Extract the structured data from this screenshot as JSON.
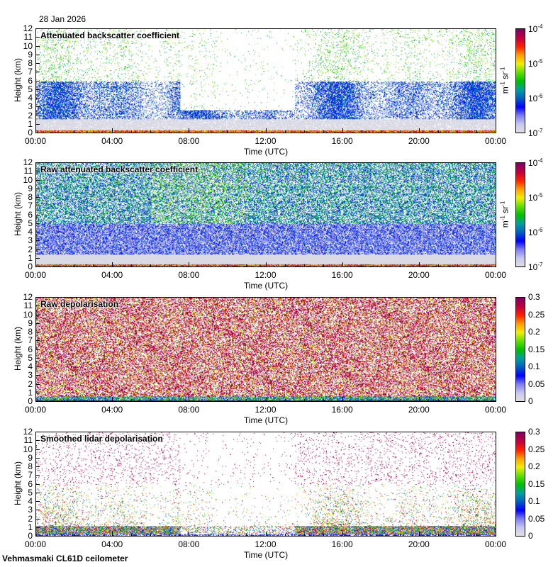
{
  "date": "28 Jan 2026",
  "footer": "Vehmasmaki CL61D ceilometer",
  "colormap": [
    "#e0e0e0",
    "#c8c8f0",
    "#8080f0",
    "#0000ff",
    "#0060c0",
    "#00a0a0",
    "#00c000",
    "#60e000",
    "#f0f000",
    "#ffa000",
    "#ff2000",
    "#c00040",
    "#800060"
  ],
  "chart_data": [
    {
      "type": "heatmap",
      "title": "Attenuated backscatter coefficient",
      "xlabel": "Time (UTC)",
      "ylabel": "Height (km)",
      "xticks": [
        "00:00",
        "04:00",
        "08:00",
        "12:00",
        "16:00",
        "20:00",
        "00:00"
      ],
      "xlim": [
        0,
        24
      ],
      "ylim": [
        0,
        12
      ],
      "yticks": [
        "0",
        "1",
        "2",
        "3",
        "4",
        "5",
        "6",
        "7",
        "8",
        "9",
        "10",
        "11",
        "12"
      ],
      "colorbar": {
        "scale": "log",
        "range": [
          1e-07,
          0.0001
        ],
        "unit_label": "m-1 sr-1",
        "unit": [
          "m",
          "-1",
          " sr",
          "-1"
        ],
        "ticks": [
          {
            "base": "10",
            "exp": "-4"
          },
          {
            "base": "10",
            "exp": "-5"
          },
          {
            "base": "10",
            "exp": "-6"
          },
          {
            "base": "10",
            "exp": "-7"
          }
        ]
      },
      "style": "bs"
    },
    {
      "type": "heatmap",
      "title": "Raw attenuated backscatter coefficient",
      "xlabel": "Time (UTC)",
      "ylabel": "Height (km)",
      "xticks": [
        "00:00",
        "04:00",
        "08:00",
        "12:00",
        "16:00",
        "20:00",
        "00:00"
      ],
      "xlim": [
        0,
        24
      ],
      "ylim": [
        0,
        12
      ],
      "yticks": [
        "0",
        "1",
        "2",
        "3",
        "4",
        "5",
        "6",
        "7",
        "8",
        "9",
        "10",
        "11",
        "12"
      ],
      "colorbar": {
        "scale": "log",
        "range": [
          1e-07,
          0.0001
        ],
        "unit_label": "m-1 sr-1",
        "unit": [
          "m",
          "-1",
          " sr",
          "-1"
        ],
        "ticks": [
          {
            "base": "10",
            "exp": "-4"
          },
          {
            "base": "10",
            "exp": "-5"
          },
          {
            "base": "10",
            "exp": "-6"
          },
          {
            "base": "10",
            "exp": "-7"
          }
        ]
      },
      "style": "raw"
    },
    {
      "type": "heatmap",
      "title": "Raw depolarisation",
      "xlabel": "Time (UTC)",
      "ylabel": "Height (km)",
      "xticks": [
        "00:00",
        "04:00",
        "08:00",
        "12:00",
        "16:00",
        "20:00",
        "00:00"
      ],
      "xlim": [
        0,
        24
      ],
      "ylim": [
        0,
        12
      ],
      "yticks": [
        "0",
        "1",
        "2",
        "3",
        "4",
        "5",
        "6",
        "7",
        "8",
        "9",
        "10",
        "11",
        "12"
      ],
      "colorbar": {
        "scale": "linear",
        "range": [
          0,
          0.3
        ],
        "ticks": [
          "0.3",
          "0.25",
          "0.2",
          "0.15",
          "0.1",
          "0.05",
          "0"
        ]
      },
      "style": "dep"
    },
    {
      "type": "heatmap",
      "title": "Smoothed lidar depolarisation",
      "xlabel": "Time (UTC)",
      "ylabel": "Height (km)",
      "xticks": [
        "00:00",
        "04:00",
        "08:00",
        "12:00",
        "16:00",
        "20:00",
        "00:00"
      ],
      "xlim": [
        0,
        24
      ],
      "ylim": [
        0,
        12
      ],
      "yticks": [
        "0",
        "1",
        "2",
        "3",
        "4",
        "5",
        "6",
        "7",
        "8",
        "9",
        "10",
        "11",
        "12"
      ],
      "colorbar": {
        "scale": "linear",
        "range": [
          0,
          0.3
        ],
        "ticks": [
          "0.3",
          "0.25",
          "0.2",
          "0.15",
          "0.1",
          "0.05",
          "0"
        ]
      },
      "style": "sdep"
    }
  ]
}
